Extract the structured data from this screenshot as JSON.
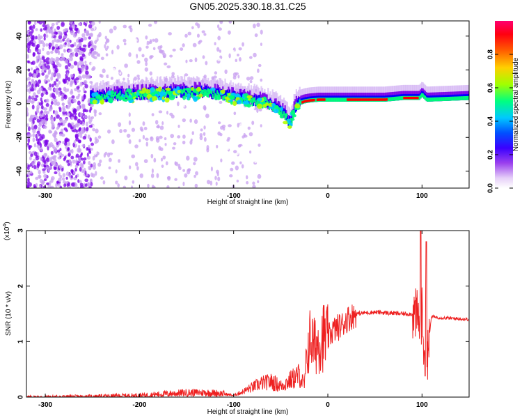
{
  "chart_data": [
    {
      "type": "heatmap",
      "title": "GN05.2025.330.18.31.C25",
      "xlabel": "Height of straight line (km)",
      "ylabel": "Frequency (Hz)",
      "xlim": [
        -320,
        150
      ],
      "ylim": [
        -50,
        49
      ],
      "xticks": [
        -300,
        -200,
        -100,
        0,
        100
      ],
      "xtick_labels": [
        "-300",
        "-200",
        "-100",
        "0",
        "100"
      ],
      "yticks": [
        -40,
        -20,
        0,
        20,
        40
      ],
      "ytick_labels": [
        "-40",
        "-20",
        "0",
        "20",
        "40"
      ],
      "colorbar": {
        "label": "Normalized spectral amplitude",
        "range": [
          0,
          1
        ],
        "ticks": [
          0.0,
          0.2,
          0.4,
          0.6,
          0.8
        ],
        "tick_labels": [
          "0.0",
          "0.2",
          "0.4",
          "0.6",
          "0.8"
        ],
        "colormap": [
          "#ffffff",
          "#c8a0f0",
          "#7a00e8",
          "#0000ff",
          "#00c8ff",
          "#00ff78",
          "#b4ff00",
          "#ffd000",
          "#ff5000",
          "#ff0000",
          "#ff0064"
        ]
      },
      "ridge": {
        "x": [
          -250,
          -220,
          -190,
          -160,
          -130,
          -110,
          -90,
          -70,
          -55,
          -45,
          -40,
          -35,
          -30,
          -25,
          -20,
          -10,
          0,
          20,
          60,
          80,
          90,
          97,
          100,
          105,
          150
        ],
        "freq": [
          3,
          4,
          5,
          6,
          6,
          4,
          2,
          0,
          -3,
          -8,
          -13,
          -3,
          0,
          1,
          1.5,
          2,
          2,
          2,
          2,
          3,
          3,
          3,
          5,
          2,
          3
        ]
      }
    },
    {
      "type": "line",
      "xlabel": "Height of straight line (km)",
      "ylabel": "SNR (10 * v/v)",
      "multiplier_label": "(x10",
      "multiplier_exponent": "4",
      "multiplier_close": ")",
      "xlim": [
        -320,
        150
      ],
      "ylim": [
        0,
        3
      ],
      "xticks": [
        -300,
        -200,
        -100,
        0,
        100
      ],
      "xtick_labels": [
        "-300",
        "-200",
        "-100",
        "0",
        "100"
      ],
      "yticks": [
        0,
        1,
        2,
        3
      ],
      "ytick_labels": [
        "0",
        "1",
        "2",
        "3"
      ],
      "color": "#ee2020",
      "series": [
        {
          "name": "SNR",
          "x": [
            -320,
            -250,
            -200,
            -180,
            -150,
            -130,
            -115,
            -100,
            -90,
            -80,
            -70,
            -60,
            -50,
            -40,
            -35,
            -30,
            -25,
            -22,
            -18,
            -15,
            -10,
            -5,
            0,
            5,
            10,
            15,
            20,
            30,
            40,
            50,
            60,
            70,
            80,
            90,
            95,
            98,
            100,
            102,
            104,
            106,
            110,
            120,
            130,
            140,
            150
          ],
          "y": [
            0.0,
            0.01,
            0.03,
            0.05,
            0.08,
            0.08,
            0.07,
            0.03,
            0.1,
            0.18,
            0.25,
            0.28,
            0.2,
            0.3,
            0.35,
            0.4,
            0.2,
            0.8,
            1.1,
            0.9,
            1.0,
            1.1,
            1.05,
            1.2,
            1.25,
            1.3,
            1.4,
            1.5,
            1.52,
            1.53,
            1.52,
            1.51,
            1.5,
            1.5,
            1.45,
            1.3,
            1.5,
            0.9,
            1.4,
            0.8,
            1.45,
            1.43,
            1.42,
            1.41,
            1.4
          ]
        }
      ]
    }
  ]
}
